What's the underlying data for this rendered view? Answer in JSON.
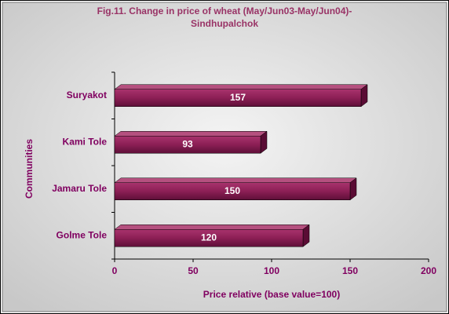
{
  "chart_data": {
    "type": "bar",
    "orientation": "horizontal",
    "title": [
      "Fig.11. Change in price of wheat (May/Jun03-May/Jun04)-",
      "Sindhupalchok"
    ],
    "categories": [
      "Golme Tole",
      "Jamaru Tole",
      "Kami Tole",
      "Suryakot"
    ],
    "values": [
      120,
      150,
      93,
      157
    ],
    "color": "#8c1f55",
    "xlim": [
      0,
      200
    ],
    "xticks": [
      0,
      50,
      100,
      150,
      200
    ],
    "xlabel": "Price relative (base value=100)",
    "ylabel": "Communities"
  }
}
